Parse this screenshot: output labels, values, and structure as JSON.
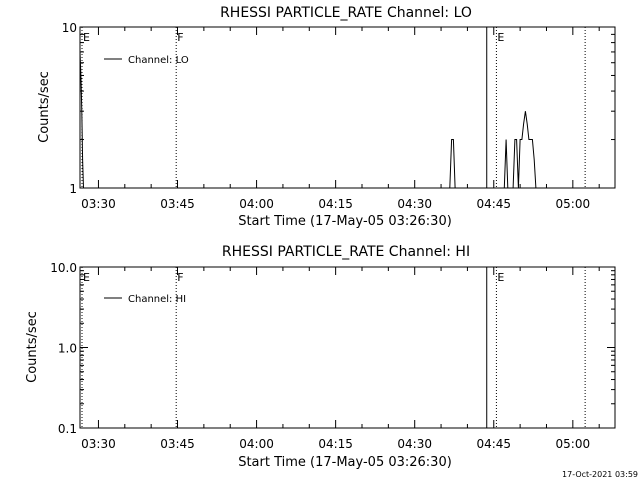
{
  "footer_stamp": "17-Oct-2021 03:59",
  "chart_data": [
    {
      "type": "line",
      "title": "RHESSI PARTICLE_RATE Channel: LO",
      "xlabel": "Start Time (17-May-05 03:26:30)",
      "ylabel": "Counts/sec",
      "yscale": "log",
      "ylim": [
        1,
        10
      ],
      "ytick_labels": [
        "1",
        "10"
      ],
      "ytick_values": [
        1,
        10
      ],
      "xlim": [
        "03:26:30",
        "05:08:00"
      ],
      "xtick_labels": [
        "03:30",
        "03:45",
        "04:00",
        "04:15",
        "04:30",
        "04:45",
        "05:00"
      ],
      "legend": {
        "position": "top-left",
        "entries": [
          "Channel: LO"
        ]
      },
      "grid": false,
      "series": [
        {
          "name": "Channel: LO",
          "x": [
            "03:26:30",
            "03:26:40",
            "03:26:50",
            "03:27:00",
            "03:27:10",
            "04:36:40",
            "04:37:00",
            "04:37:20",
            "04:37:40",
            "04:47:00",
            "04:47:20",
            "04:47:40",
            "04:48:00",
            "04:48:40",
            "04:49:00",
            "04:49:20",
            "04:49:40",
            "04:50:00",
            "04:50:20",
            "04:50:40",
            "04:51:00",
            "04:51:20",
            "04:51:40",
            "04:52:00",
            "04:52:20",
            "04:52:40",
            "04:53:00",
            "04:53:20"
          ],
          "y": [
            7,
            5,
            3,
            1.5,
            1,
            1,
            2,
            2,
            1,
            1,
            2,
            1,
            1,
            1,
            2,
            2,
            1,
            2,
            2,
            2.5,
            3,
            2.5,
            2,
            2,
            2,
            1.5,
            1,
            1
          ]
        }
      ],
      "markers": [
        {
          "label": "E",
          "time": "03:26:30",
          "style": "dotted"
        },
        {
          "label": "F",
          "time": "03:44:45",
          "style": "dotted"
        },
        {
          "label": "E",
          "time": "04:45:30",
          "style": "dotted"
        },
        {
          "label": "",
          "time": "04:43:40",
          "style": "solid"
        },
        {
          "label": "",
          "time": "05:02:20",
          "style": "dotted"
        }
      ]
    },
    {
      "type": "line",
      "title": "RHESSI PARTICLE_RATE Channel: HI",
      "xlabel": "Start Time (17-May-05 03:26:30)",
      "ylabel": "Counts/sec",
      "yscale": "log",
      "ylim": [
        0.1,
        10
      ],
      "ytick_labels": [
        "0.1",
        "1.0",
        "10.0"
      ],
      "ytick_values": [
        0.1,
        1,
        10
      ],
      "xlim": [
        "03:26:30",
        "05:08:00"
      ],
      "xtick_labels": [
        "03:30",
        "03:45",
        "04:00",
        "04:15",
        "04:30",
        "04:45",
        "05:00"
      ],
      "legend": {
        "position": "top-left",
        "entries": [
          "Channel: HI"
        ]
      },
      "grid": false,
      "series": [
        {
          "name": "Channel: HI",
          "x": [],
          "y": []
        }
      ],
      "markers": [
        {
          "label": "E",
          "time": "03:26:30",
          "style": "dotted"
        },
        {
          "label": "F",
          "time": "03:44:45",
          "style": "dotted"
        },
        {
          "label": "E",
          "time": "04:45:30",
          "style": "dotted"
        },
        {
          "label": "",
          "time": "04:43:40",
          "style": "solid"
        },
        {
          "label": "",
          "time": "05:02:20",
          "style": "dotted"
        }
      ]
    }
  ]
}
